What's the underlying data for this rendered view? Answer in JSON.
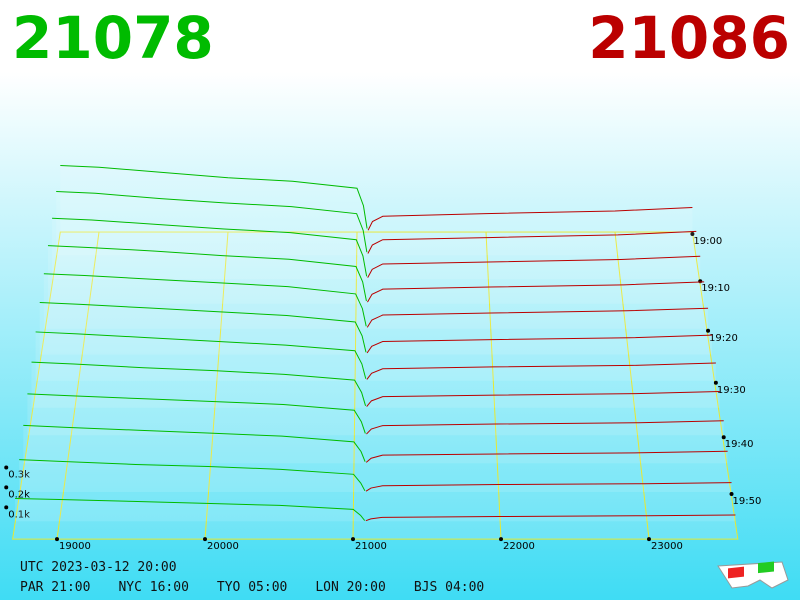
{
  "chart_data": {
    "type": "depth3d",
    "bid": 21078,
    "ask": 21086,
    "bid_color": "#00bb00",
    "ask_color": "#bb0000",
    "clock": {
      "utc": "UTC 2023-03-12 20:00",
      "zones": [
        "PAR 21:00",
        "NYC 16:00",
        "TYO 05:00",
        "LON 20:00",
        "BJS 04:00"
      ]
    },
    "xticks": [
      19000,
      20000,
      21000,
      22000,
      23000
    ],
    "yticks": [
      {
        "value": 100,
        "label": "0.1k"
      },
      {
        "value": 200,
        "label": "0.2k"
      },
      {
        "value": 300,
        "label": "0.3k"
      }
    ],
    "zticks": [
      {
        "value": 0,
        "label": "19:00"
      },
      {
        "value": 10,
        "label": "19:10"
      },
      {
        "value": 20,
        "label": "19:20"
      },
      {
        "value": 30,
        "label": "19:30"
      },
      {
        "value": 40,
        "label": "19:40"
      },
      {
        "value": 50,
        "label": "19:50"
      }
    ],
    "bid_prices": [
      21078,
      21050,
      21000,
      20500,
      20000,
      19500,
      19000,
      18700
    ],
    "ask_prices": [
      21086,
      21120,
      21200,
      22000,
      23000,
      23600
    ],
    "rows": [
      {
        "t": 0,
        "bids": [
          20,
          150,
          250,
          290,
          310,
          340,
          370,
          380
        ],
        "asks": [
          10,
          60,
          90,
          105,
          120,
          140
        ]
      },
      {
        "t": 5,
        "bids": [
          18,
          140,
          235,
          275,
          295,
          320,
          350,
          360
        ],
        "asks": [
          10,
          58,
          88,
          100,
          115,
          135
        ]
      },
      {
        "t": 10,
        "bids": [
          16,
          130,
          220,
          260,
          280,
          305,
          330,
          340
        ],
        "asks": [
          9,
          55,
          85,
          96,
          110,
          128
        ]
      },
      {
        "t": 15,
        "bids": [
          15,
          120,
          205,
          245,
          265,
          290,
          310,
          320
        ],
        "asks": [
          9,
          52,
          80,
          92,
          104,
          120
        ]
      },
      {
        "t": 20,
        "bids": [
          14,
          110,
          190,
          230,
          250,
          270,
          290,
          300
        ],
        "asks": [
          8,
          48,
          75,
          86,
          98,
          112
        ]
      },
      {
        "t": 25,
        "bids": [
          12,
          100,
          175,
          210,
          230,
          250,
          270,
          280
        ],
        "asks": [
          8,
          44,
          70,
          80,
          90,
          104
        ]
      },
      {
        "t": 30,
        "bids": [
          11,
          90,
          160,
          190,
          210,
          230,
          250,
          260
        ],
        "asks": [
          7,
          40,
          64,
          74,
          82,
          95
        ]
      },
      {
        "t": 35,
        "bids": [
          10,
          80,
          145,
          175,
          195,
          210,
          230,
          240
        ],
        "asks": [
          6,
          36,
          58,
          66,
          74,
          85
        ]
      },
      {
        "t": 40,
        "bids": [
          9,
          70,
          130,
          160,
          175,
          190,
          205,
          215
        ],
        "asks": [
          6,
          32,
          50,
          58,
          65,
          75
        ]
      },
      {
        "t": 45,
        "bids": [
          8,
          60,
          110,
          140,
          155,
          170,
          185,
          195
        ],
        "asks": [
          5,
          26,
          42,
          48,
          54,
          62
        ]
      },
      {
        "t": 50,
        "bids": [
          6,
          45,
          90,
          115,
          130,
          140,
          155,
          165
        ],
        "asks": [
          4,
          20,
          32,
          38,
          42,
          48
        ]
      },
      {
        "t": 55,
        "bids": [
          4,
          30,
          60,
          80,
          90,
          100,
          110,
          115
        ],
        "asks": [
          3,
          12,
          20,
          24,
          28,
          32
        ]
      }
    ]
  }
}
